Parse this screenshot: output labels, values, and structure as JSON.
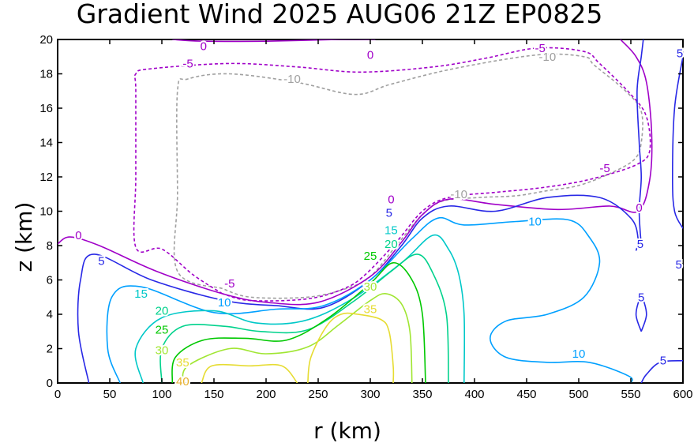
{
  "chart_data": {
    "type": "contour",
    "title": "Gradient Wind 2025 AUG06 21Z   EP0825",
    "xlabel": "r (km)",
    "ylabel": "z (km)",
    "xlim": [
      0,
      600
    ],
    "ylim": [
      0,
      20
    ],
    "xticks": [
      "0",
      "50",
      "100",
      "150",
      "200",
      "250",
      "300",
      "350",
      "400",
      "450",
      "500",
      "550",
      "600"
    ],
    "yticks": [
      "0",
      "2",
      "4",
      "6",
      "8",
      "10",
      "12",
      "14",
      "16",
      "18",
      "20"
    ],
    "grid": false,
    "colors": {
      "-10": "#a0a0a0",
      "-5": "#a000c8",
      "0": "#a000c8",
      "5": "#2828e6",
      "10": "#00a0ff",
      "15": "#00c8c8",
      "20": "#00d28c",
      "25": "#00c800",
      "30": "#a0e632",
      "35": "#e6dc32",
      "40": "#e6af2d"
    },
    "contours": [
      {
        "level": -10,
        "label": "-10",
        "dashed": true,
        "points": [
          [
            158,
            5.5
          ],
          [
            115,
            6.5
          ],
          [
            115,
            11
          ],
          [
            115,
            17
          ],
          [
            125,
            17.7
          ],
          [
            165,
            18
          ],
          [
            230,
            17.5
          ],
          [
            285,
            16.8
          ],
          [
            320,
            17.4
          ],
          [
            380,
            18.3
          ],
          [
            460,
            19.1
          ],
          [
            505,
            19
          ],
          [
            515,
            18.5
          ],
          [
            545,
            17
          ],
          [
            560,
            15.8
          ],
          [
            560,
            14
          ],
          [
            553,
            13
          ],
          [
            530,
            12.2
          ],
          [
            500,
            11.5
          ],
          [
            470,
            11.2
          ],
          [
            440,
            10.9
          ],
          [
            405,
            10.8
          ],
          [
            370,
            10.6
          ],
          [
            350,
            9.8
          ],
          [
            325,
            8
          ],
          [
            300,
            6.2
          ],
          [
            277,
            5.5
          ],
          [
            240,
            5
          ],
          [
            185,
            5
          ],
          [
            158,
            5.5
          ]
        ]
      },
      {
        "level": -5,
        "label": "-5",
        "dashed": true,
        "points": [
          [
            158,
            5.2
          ],
          [
            130,
            6.3
          ],
          [
            100,
            7.8
          ],
          [
            75,
            7.9
          ],
          [
            75,
            12
          ],
          [
            75,
            17
          ],
          [
            75,
            18
          ],
          [
            90,
            18.3
          ],
          [
            165,
            18.6
          ],
          [
            230,
            18.4
          ],
          [
            290,
            18.1
          ],
          [
            360,
            18.4
          ],
          [
            410,
            18.9
          ],
          [
            460,
            19.5
          ],
          [
            505,
            19.3
          ],
          [
            520,
            18.6
          ],
          [
            550,
            16.8
          ],
          [
            565,
            15.5
          ],
          [
            568,
            13.5
          ],
          [
            555,
            12.7
          ],
          [
            520,
            12
          ],
          [
            490,
            11.6
          ],
          [
            455,
            11.3
          ],
          [
            420,
            11.1
          ],
          [
            375,
            10.8
          ],
          [
            350,
            10
          ],
          [
            325,
            8.2
          ],
          [
            295,
            6.3
          ],
          [
            275,
            5.5
          ],
          [
            240,
            4.9
          ],
          [
            185,
            4.8
          ],
          [
            158,
            5.2
          ]
        ]
      },
      {
        "level": 0,
        "label": "0",
        "dashed": false,
        "points": [
          [
            0,
            8.1
          ],
          [
            12,
            8.5
          ],
          [
            40,
            8
          ],
          [
            95,
            6.5
          ],
          [
            158,
            5.2
          ],
          [
            200,
            4.7
          ],
          [
            250,
            4.7
          ],
          [
            300,
            6.2
          ],
          [
            330,
            8.2
          ],
          [
            350,
            9.8
          ],
          [
            375,
            10.7
          ],
          [
            420,
            10.4
          ],
          [
            480,
            10.1
          ],
          [
            530,
            10.3
          ],
          [
            557,
            10
          ],
          [
            568,
            11.8
          ],
          [
            570,
            14.5
          ],
          [
            565,
            17.5
          ],
          [
            555,
            19
          ],
          [
            540,
            20
          ]
        ]
      },
      {
        "level": 0,
        "label": "0",
        "dashed": false,
        "points": [
          [
            110,
            20
          ],
          [
            140,
            19.9
          ],
          [
            200,
            19.9
          ],
          [
            270,
            20
          ],
          [
            305,
            20
          ]
        ]
      },
      {
        "level": 5,
        "label": "5",
        "dashed": false,
        "points": [
          [
            30,
            0
          ],
          [
            20,
            3
          ],
          [
            22,
            6
          ],
          [
            35,
            7.5
          ],
          [
            90,
            6
          ],
          [
            160,
            4.8
          ],
          [
            210,
            4.5
          ],
          [
            255,
            4.4
          ],
          [
            300,
            6
          ],
          [
            330,
            8
          ],
          [
            350,
            9.6
          ],
          [
            375,
            10.3
          ],
          [
            420,
            10
          ],
          [
            470,
            10.8
          ],
          [
            520,
            10.8
          ],
          [
            550,
            9.6
          ],
          [
            557,
            8.4
          ],
          [
            555,
            7.7
          ]
        ]
      },
      {
        "level": 5,
        "label": "5",
        "dashed": false,
        "points": [
          [
            562,
            20
          ],
          [
            560,
            19
          ],
          [
            556,
            17
          ],
          [
            558,
            14
          ],
          [
            560,
            12
          ],
          [
            558,
            10
          ],
          [
            560,
            8
          ]
        ]
      },
      {
        "level": 5,
        "label": "5",
        "dashed": false,
        "points": [
          [
            600,
            19
          ],
          [
            592,
            16
          ],
          [
            590,
            12
          ],
          [
            592,
            10
          ],
          [
            600,
            9
          ]
        ]
      },
      {
        "level": 5,
        "label": "5",
        "dashed": false,
        "points": [
          [
            560,
            0
          ],
          [
            565,
            0.5
          ],
          [
            578,
            1.2
          ],
          [
            600,
            1.3
          ]
        ]
      },
      {
        "level": 5,
        "label": "5",
        "dashed": false,
        "points": [
          [
            560,
            3
          ],
          [
            555,
            4
          ],
          [
            560,
            5
          ],
          [
            565,
            4
          ],
          [
            560,
            3
          ]
        ]
      },
      {
        "level": 10,
        "label": "10",
        "dashed": false,
        "points": [
          [
            60,
            0
          ],
          [
            48,
            2
          ],
          [
            52,
            5
          ],
          [
            80,
            5.6
          ],
          [
            150,
            4.1
          ],
          [
            210,
            4.3
          ],
          [
            255,
            4.5
          ],
          [
            300,
            6
          ],
          [
            340,
            8.4
          ],
          [
            365,
            9.6
          ],
          [
            390,
            9.2
          ],
          [
            440,
            9.4
          ],
          [
            490,
            9.5
          ],
          [
            510,
            8.5
          ],
          [
            520,
            7
          ],
          [
            505,
            5
          ],
          [
            470,
            4
          ],
          [
            430,
            3.6
          ],
          [
            415,
            2.6
          ],
          [
            430,
            1.5
          ],
          [
            470,
            1.2
          ],
          [
            510,
            1.2
          ],
          [
            548,
            0.4
          ],
          [
            550,
            0
          ]
        ]
      },
      {
        "level": 15,
        "label": "15",
        "dashed": false,
        "points": [
          [
            82,
            0
          ],
          [
            75,
            2
          ],
          [
            100,
            3.8
          ],
          [
            150,
            4.2
          ],
          [
            190,
            3.5
          ],
          [
            235,
            3.6
          ],
          [
            280,
            4.8
          ],
          [
            330,
            7
          ],
          [
            360,
            8.6
          ],
          [
            375,
            7.8
          ],
          [
            385,
            6.3
          ],
          [
            390,
            4
          ],
          [
            390,
            0
          ]
        ]
      },
      {
        "level": 20,
        "label": "20",
        "dashed": false,
        "points": [
          [
            100,
            0
          ],
          [
            100,
            2
          ],
          [
            120,
            3.3
          ],
          [
            160,
            3.3
          ],
          [
            195,
            3
          ],
          [
            240,
            3.1
          ],
          [
            285,
            4.8
          ],
          [
            320,
            6.5
          ],
          [
            345,
            7.5
          ],
          [
            360,
            6.4
          ],
          [
            373,
            4
          ],
          [
            375,
            0
          ]
        ]
      },
      {
        "level": 25,
        "label": "25",
        "dashed": false,
        "points": [
          [
            110,
            0
          ],
          [
            113,
            1.5
          ],
          [
            140,
            2.5
          ],
          [
            180,
            2.6
          ],
          [
            220,
            2.5
          ],
          [
            260,
            3.8
          ],
          [
            300,
            5.8
          ],
          [
            322,
            7
          ],
          [
            340,
            6
          ],
          [
            350,
            4
          ],
          [
            353,
            0
          ]
        ]
      },
      {
        "level": 30,
        "label": "30",
        "dashed": false,
        "points": [
          [
            120,
            0
          ],
          [
            125,
            1
          ],
          [
            165,
            2
          ],
          [
            200,
            1.7
          ],
          [
            240,
            2.1
          ],
          [
            270,
            3.4
          ],
          [
            300,
            4.8
          ],
          [
            315,
            5.2
          ],
          [
            330,
            4.6
          ],
          [
            338,
            3
          ],
          [
            340,
            0
          ]
        ]
      },
      {
        "level": 35,
        "label": "35",
        "dashed": false,
        "points": [
          [
            138,
            0
          ],
          [
            148,
            1
          ],
          [
            185,
            1
          ],
          [
            215,
            1
          ],
          [
            230,
            0
          ]
        ]
      },
      {
        "level": 35,
        "label": "35",
        "dashed": false,
        "points": [
          [
            240,
            0
          ],
          [
            243,
            1.5
          ],
          [
            258,
            3.3
          ],
          [
            272,
            4
          ],
          [
            288,
            4
          ],
          [
            310,
            3.7
          ],
          [
            318,
            3
          ],
          [
            322,
            1
          ],
          [
            322,
            0
          ]
        ]
      }
    ],
    "labels": [
      {
        "text": "0",
        "level": 0,
        "x": 140,
        "y": 19.6
      },
      {
        "text": "0",
        "level": 0,
        "x": 300,
        "y": 19.1
      },
      {
        "text": "-5",
        "level": -5,
        "x": 125,
        "y": 18.6
      },
      {
        "text": "-5",
        "level": -5,
        "x": 463,
        "y": 19.5
      },
      {
        "text": "-10",
        "level": -10,
        "x": 470,
        "y": 19
      },
      {
        "text": "-10",
        "level": -10,
        "x": 225,
        "y": 17.7
      },
      {
        "text": "5",
        "level": 5,
        "x": 597,
        "y": 19.2
      },
      {
        "text": "-5",
        "level": -5,
        "x": 525,
        "y": 12.5
      },
      {
        "text": "0",
        "level": 0,
        "x": 558,
        "y": 10.2
      },
      {
        "text": "-10",
        "level": -10,
        "x": 385,
        "y": 11
      },
      {
        "text": "0",
        "level": 0,
        "x": 320,
        "y": 10.7
      },
      {
        "text": "5",
        "level": 5,
        "x": 318,
        "y": 9.9
      },
      {
        "text": "10",
        "level": 10,
        "x": 458,
        "y": 9.4
      },
      {
        "text": "15",
        "level": 15,
        "x": 320,
        "y": 8.9
      },
      {
        "text": "20",
        "level": 20,
        "x": 320,
        "y": 8.1
      },
      {
        "text": "0",
        "level": 0,
        "x": 20,
        "y": 8.6
      },
      {
        "text": "5",
        "level": 5,
        "x": 559,
        "y": 8.1
      },
      {
        "text": "5",
        "level": 5,
        "x": 596,
        "y": 6.9
      },
      {
        "text": "5",
        "level": 5,
        "x": 42,
        "y": 7.1
      },
      {
        "text": "25",
        "level": 25,
        "x": 300,
        "y": 7.4
      },
      {
        "text": "-5",
        "level": -5,
        "x": 165,
        "y": 5.8
      },
      {
        "text": "30",
        "level": 30,
        "x": 300,
        "y": 5.6
      },
      {
        "text": "15",
        "level": 15,
        "x": 80,
        "y": 5.2
      },
      {
        "text": "10",
        "level": 10,
        "x": 160,
        "y": 4.7
      },
      {
        "text": "5",
        "level": 5,
        "x": 560,
        "y": 5
      },
      {
        "text": "20",
        "level": 20,
        "x": 100,
        "y": 4.2
      },
      {
        "text": "35",
        "level": 35,
        "x": 300,
        "y": 4.3
      },
      {
        "text": "25",
        "level": 25,
        "x": 100,
        "y": 3.1
      },
      {
        "text": "30",
        "level": 30,
        "x": 100,
        "y": 1.9
      },
      {
        "text": "10",
        "level": 10,
        "x": 500,
        "y": 1.7
      },
      {
        "text": "5",
        "level": 5,
        "x": 581,
        "y": 1.3
      },
      {
        "text": "35",
        "level": 35,
        "x": 120,
        "y": 1.2
      },
      {
        "text": "40",
        "level": 40,
        "x": 120,
        "y": 0.1
      }
    ]
  }
}
